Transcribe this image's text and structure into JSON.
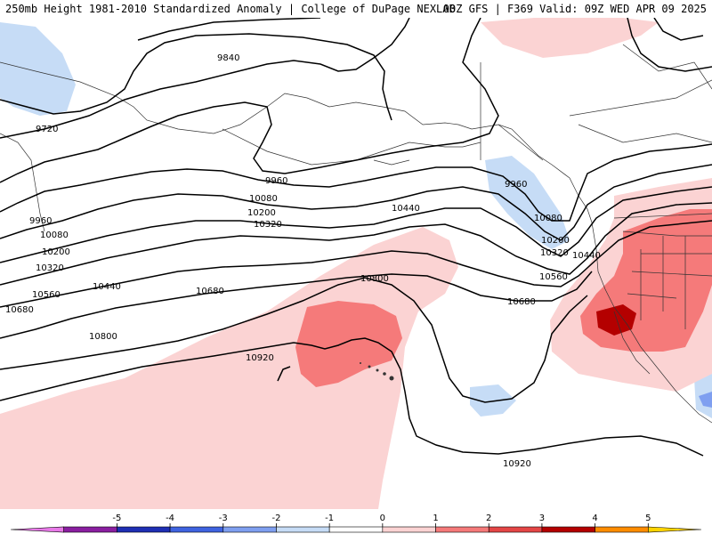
{
  "header": {
    "left": "250mb Height 1981-2010 Standardized Anomaly | College of DuPage NEXLAB",
    "right": "00Z GFS | F369 Valid: 09Z WED APR 09 2025"
  },
  "contour_labels": [
    "9720",
    "9840",
    "9960",
    "9960",
    "9960",
    "10080",
    "10080",
    "10080",
    "10200",
    "10200",
    "10200",
    "10320",
    "10320",
    "10320",
    "10440",
    "10440",
    "10440",
    "10560",
    "10560",
    "10680",
    "10680",
    "10680",
    "10800",
    "10800",
    "10920",
    "10920"
  ],
  "colorbar": {
    "ticks": [
      "-5",
      "-4",
      "-3",
      "-2",
      "-1",
      "0",
      "1",
      "2",
      "3",
      "4",
      "5"
    ],
    "colors": [
      "#e879e8",
      "#8a1ea0",
      "#1e2fb4",
      "#3f63e0",
      "#7f9ff0",
      "#c6dcf6",
      "#ffffff",
      "#fbd3d3",
      "#f57a7a",
      "#e44646",
      "#b40000",
      "#ff8c00",
      "#ffd400"
    ]
  }
}
